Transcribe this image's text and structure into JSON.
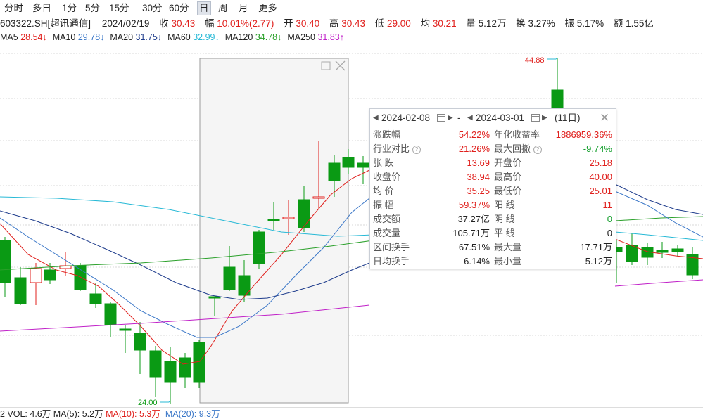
{
  "toolbar": {
    "periods": [
      "分时",
      "多日",
      "1分",
      "5分",
      "15分",
      "30分",
      "60分",
      "日",
      "周",
      "月",
      "更多"
    ],
    "active": "日"
  },
  "info": {
    "code": "603322.SH[超讯通信]",
    "date": "2024/02/19",
    "close_label": "收",
    "close": "30.43",
    "change_label": "幅",
    "change": "10.01%(2.77)",
    "open_label": "开",
    "open": "30.40",
    "high_label": "高",
    "high": "30.43",
    "low_label": "低",
    "low": "29.00",
    "avg_label": "均",
    "avg": "30.21",
    "vol_label": "量",
    "vol": "5.12万",
    "turnover_label": "换",
    "turnover": "3.27%",
    "amp_label": "振",
    "amp": "5.17%",
    "amount_label": "额",
    "amount": "1.55亿"
  },
  "ma": [
    {
      "label": "MA5",
      "value": "28.54↓",
      "color": "#e0201d"
    },
    {
      "label": "MA10",
      "value": "29.78↓",
      "color": "#3c78c8"
    },
    {
      "label": "MA20",
      "value": "31.75↓",
      "color": "#1e3c8c"
    },
    {
      "label": "MA60",
      "value": "32.99↓",
      "color": "#27b9d6"
    },
    {
      "label": "MA120",
      "value": "34.78↓",
      "color": "#2aa02a"
    },
    {
      "label": "MA250",
      "value": "31.83↑",
      "color": "#c020c8"
    }
  ],
  "chart": {
    "max_label": "44.88",
    "min_label": "24.00",
    "up_color": "#e0201d",
    "down_color": "#0a9a14"
  },
  "popup": {
    "start_date": "2024-02-08",
    "end_date": "2024-03-01",
    "days": "(11日)",
    "rows": [
      {
        "l1": "涨跌幅",
        "v1": "54.22%",
        "c1": "red",
        "l2": "年化收益率",
        "v2": "1886959.36%",
        "c2": "red"
      },
      {
        "l1": "行业对比",
        "v1": "21.26%",
        "c1": "red",
        "l2": "最大回撤",
        "v2": "-9.74%",
        "c2": "green",
        "q": true
      },
      {
        "l1": "张  跌",
        "v1": "13.69",
        "c1": "red",
        "l2": "开盘价",
        "v2": "25.18",
        "c2": "red"
      },
      {
        "l1": "收盘价",
        "v1": "38.94",
        "c1": "red",
        "l2": "最高价",
        "v2": "40.00",
        "c2": "red"
      },
      {
        "l1": "均  价",
        "v1": "35.25",
        "c1": "red",
        "l2": "最低价",
        "v2": "25.01",
        "c2": "red"
      },
      {
        "l1": "振  幅",
        "v1": "59.37%",
        "c1": "red",
        "l2": "阳  线",
        "v2": "11",
        "c2": "red"
      },
      {
        "l1": "成交额",
        "v1": "37.27亿",
        "c1": "blk",
        "l2": "阴  线",
        "v2": "0",
        "c2": "green"
      },
      {
        "l1": "成交量",
        "v1": "105.71万",
        "c1": "blk",
        "l2": "平  线",
        "v2": "0",
        "c2": "blk"
      },
      {
        "l1": "区间换手",
        "v1": "67.51%",
        "c1": "blk",
        "l2": "最大量",
        "v2": "17.71万",
        "c2": "blk"
      },
      {
        "l1": "日均换手",
        "v1": "6.14%",
        "c1": "blk",
        "l2": "最小量",
        "v2": "5.12万",
        "c2": "blk"
      }
    ]
  },
  "volume_bar": {
    "text": "2  VOL: 4.6万  MA(5): 5.2万  ",
    "ma10": "MA(10): 5.3万",
    "ma20": "MA(20): 9.3万"
  }
}
